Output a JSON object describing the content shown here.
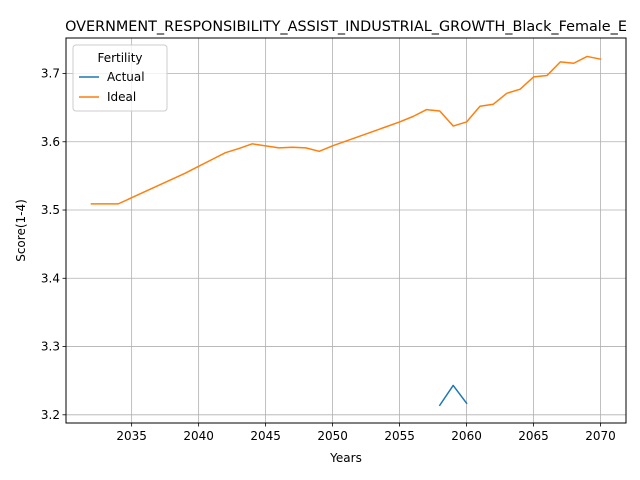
{
  "chart_data": {
    "type": "line",
    "title": "OVERNMENT_RESPONSIBILITY_ASSIST_INDUSTRIAL_GROWTH_Black_Female_E",
    "xlabel": "Years",
    "ylabel": "Score(1-4)",
    "xlim": [
      2030.1,
      2071.9
    ],
    "ylim": [
      3.188,
      3.752
    ],
    "xticks": [
      2035,
      2040,
      2045,
      2050,
      2055,
      2060,
      2065,
      2070
    ],
    "yticks": [
      3.2,
      3.3,
      3.4,
      3.5,
      3.6,
      3.7
    ],
    "grid": true,
    "legend": {
      "title": "Fertility",
      "position": "upper-left"
    },
    "series": [
      {
        "name": "Actual",
        "color": "#1f77b4",
        "x": [
          2058,
          2059,
          2060
        ],
        "y": [
          3.214,
          3.243,
          3.217
        ]
      },
      {
        "name": "Ideal",
        "color": "#ff7f0e",
        "x": [
          2032,
          2033,
          2034,
          2035,
          2036,
          2037,
          2038,
          2039,
          2040,
          2041,
          2042,
          2043,
          2044,
          2045,
          2046,
          2047,
          2048,
          2049,
          2050,
          2051,
          2052,
          2053,
          2054,
          2055,
          2056,
          2057,
          2058,
          2059,
          2060,
          2061,
          2062,
          2063,
          2064,
          2065,
          2066,
          2067,
          2068,
          2069,
          2070
        ],
        "y": [
          3.509,
          3.509,
          3.509,
          3.518,
          3.527,
          3.536,
          3.545,
          3.554,
          3.564,
          3.574,
          3.584,
          3.59,
          3.597,
          3.594,
          3.591,
          3.592,
          3.591,
          3.586,
          3.594,
          3.601,
          3.608,
          3.615,
          3.622,
          3.629,
          3.637,
          3.647,
          3.645,
          3.623,
          3.629,
          3.652,
          3.655,
          3.671,
          3.677,
          3.695,
          3.697,
          3.717,
          3.715,
          3.725,
          3.721
        ]
      }
    ]
  }
}
